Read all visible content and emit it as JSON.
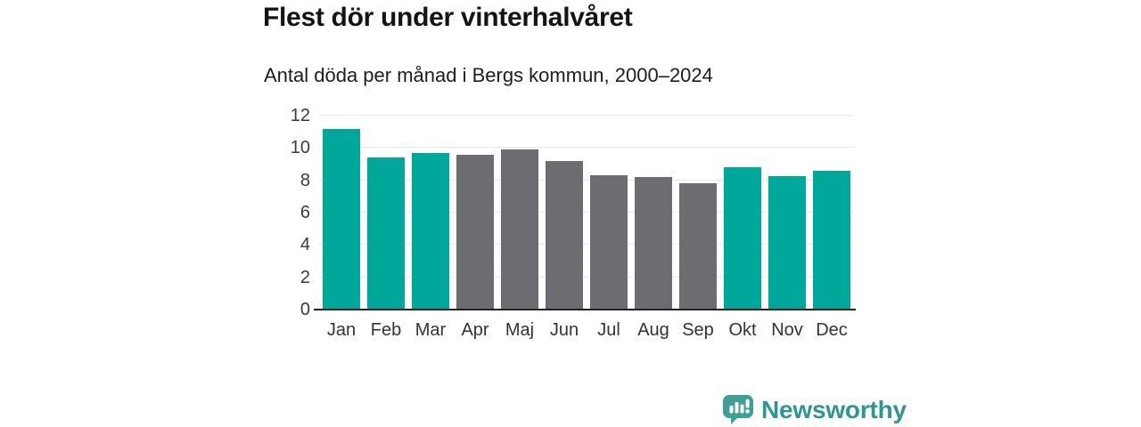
{
  "header": {
    "title": "Flest dör under vinterhalvåret",
    "subtitle": "Antal döda per månad i Bergs kommun, 2000–2024"
  },
  "chart_data": {
    "type": "bar",
    "title": "Flest dör under vinterhalvåret",
    "subtitle": "Antal döda per månad i Bergs kommun, 2000–2024",
    "categories": [
      "Jan",
      "Feb",
      "Mar",
      "Apr",
      "Maj",
      "Jun",
      "Jul",
      "Aug",
      "Sep",
      "Okt",
      "Nov",
      "Dec"
    ],
    "values": [
      11.2,
      9.4,
      9.7,
      9.6,
      9.9,
      9.2,
      8.3,
      8.2,
      7.8,
      8.8,
      8.25,
      8.6
    ],
    "highlighted": [
      true,
      true,
      true,
      false,
      false,
      false,
      false,
      false,
      false,
      true,
      true,
      true
    ],
    "colors": {
      "winter_bar": "#00a79b",
      "summer_bar": "#6d6d71",
      "gridline": "#e8e8eb",
      "axis_line": "#222226"
    },
    "ylim": [
      0,
      12
    ],
    "y_ticks": [
      0,
      2,
      4,
      6,
      8,
      10,
      12
    ],
    "grid": true,
    "legend": false,
    "xlabel": "",
    "ylabel": ""
  },
  "footer": {
    "brand": "Newsworthy",
    "brand_text_color": "#2f968f",
    "logo_color": "#3f9e96"
  }
}
